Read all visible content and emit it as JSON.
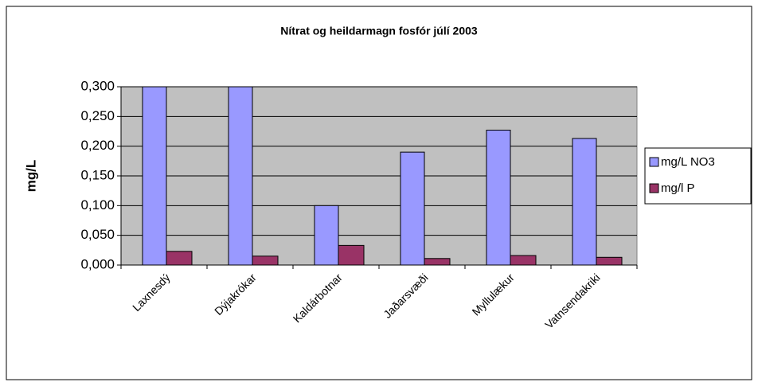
{
  "chart_data": {
    "type": "bar",
    "title": "Nítrat og heildarmagn fosfór júlí 2003",
    "y_label": "mg/L",
    "categories": [
      "Laxnesdý",
      "Dýjakrókar",
      "Kaldárbotnar",
      "Jaðarsvæði",
      "Myllulækur",
      "Vatnsendakriki"
    ],
    "series": [
      {
        "name": "mg/L NO3",
        "color": "#9999ff",
        "values": [
          0.3,
          0.3,
          0.1,
          0.19,
          0.227,
          0.213
        ]
      },
      {
        "name": "mg/l P",
        "color": "#993366",
        "values": [
          0.023,
          0.015,
          0.033,
          0.011,
          0.016,
          0.013
        ]
      }
    ],
    "ylim": [
      0,
      0.3
    ],
    "yticks": [
      {
        "value": 0,
        "label": "0,000"
      },
      {
        "value": 0.05,
        "label": "0,050"
      },
      {
        "value": 0.1,
        "label": "0,100"
      },
      {
        "value": 0.15,
        "label": "0,150"
      },
      {
        "value": 0.2,
        "label": "0,200"
      },
      {
        "value": 0.25,
        "label": "0,250"
      },
      {
        "value": 0.3,
        "label": "0,300"
      }
    ],
    "grid": true,
    "legend": "right"
  }
}
